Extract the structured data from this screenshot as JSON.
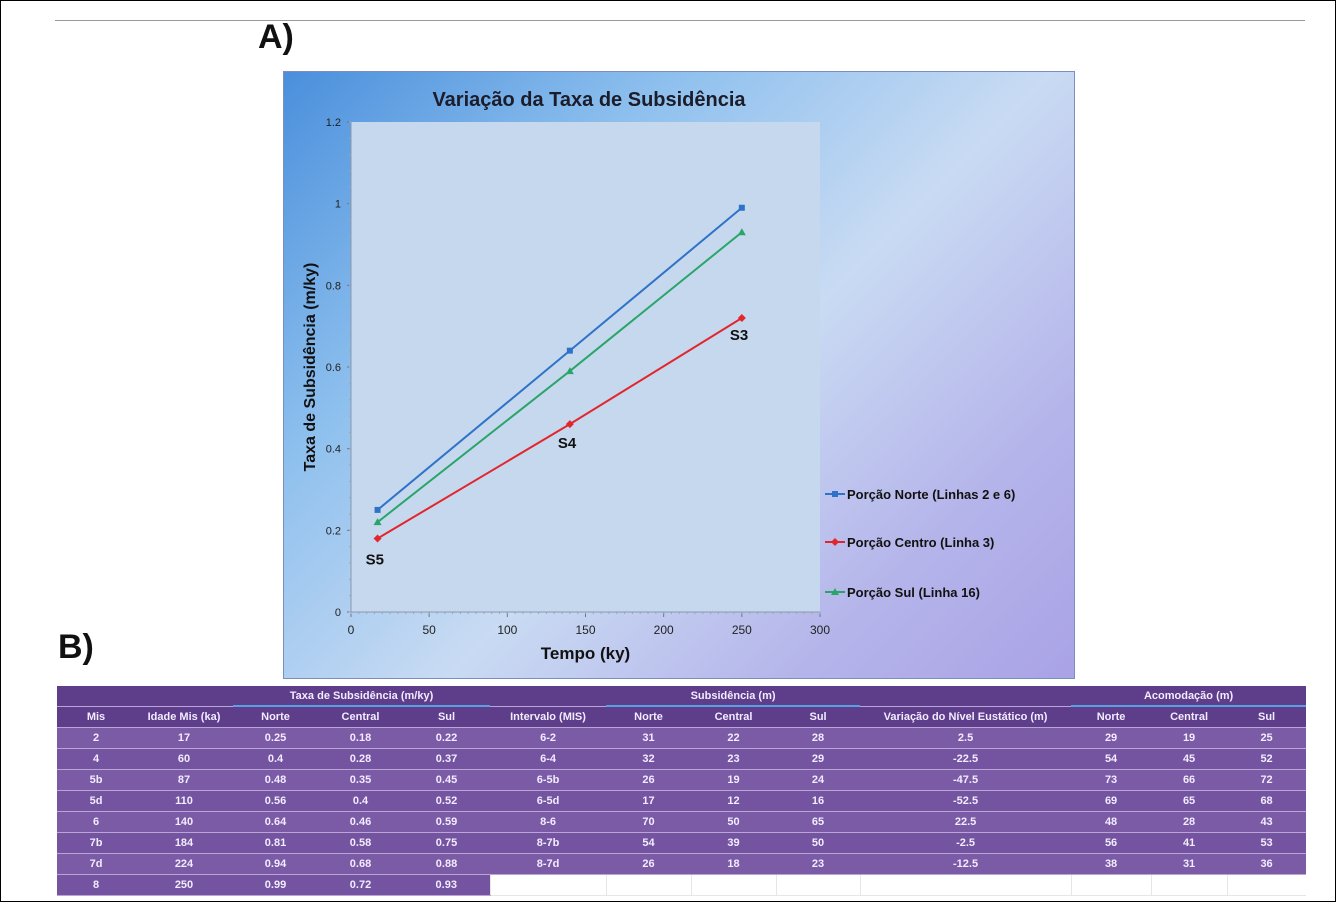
{
  "panel_a_label": "A)",
  "panel_b_label": "B)",
  "colors": {
    "norte": "#2f73c9",
    "centro": "#e3262d",
    "sul": "#2aa56a",
    "table_dark": "#5e3d8a",
    "table_row": "#7b5aa6"
  },
  "chart_data": {
    "type": "line",
    "title": "Variação da Taxa de Subsidência",
    "xlabel": "Tempo (ky)",
    "ylabel": "Taxa de Subsidência (m/ky)",
    "xlim": [
      0,
      300
    ],
    "ylim": [
      0,
      1.2
    ],
    "xticks": [
      0,
      50,
      100,
      150,
      200,
      250,
      300
    ],
    "yticks": [
      0,
      0.2,
      0.4,
      0.6,
      0.8,
      1,
      1.2
    ],
    "legend_position": "right",
    "series": [
      {
        "name": "Porção Norte (Linhas 2 e 6)",
        "color": "#2f73c9",
        "marker": "square",
        "x": [
          17,
          140,
          250
        ],
        "y": [
          0.25,
          0.64,
          0.99
        ]
      },
      {
        "name": "Porção Centro (Linha 3)",
        "color": "#e3262d",
        "marker": "diamond",
        "x": [
          17,
          140,
          250
        ],
        "y": [
          0.18,
          0.46,
          0.72
        ]
      },
      {
        "name": "Porção Sul (Linha 16)",
        "color": "#2aa56a",
        "marker": "triangle",
        "x": [
          17,
          140,
          250
        ],
        "y": [
          0.22,
          0.59,
          0.93
        ]
      }
    ],
    "annotations": [
      {
        "text": "S5",
        "x": 17,
        "y": 0.18
      },
      {
        "text": "S4",
        "x": 140,
        "y": 0.46
      },
      {
        "text": "S3",
        "x": 250,
        "y": 0.72
      }
    ]
  },
  "table": {
    "groups": {
      "taxa": "Taxa de Subsidência (m/ky)",
      "subsidencia": "Subsidência (m)",
      "acomodacao": "Acomodação (m)"
    },
    "headers": [
      "Mis",
      "Idade Mis (ka)",
      "Norte",
      "Central",
      "Sul",
      "Intervalo (MIS)",
      "Norte",
      "Central",
      "Sul",
      "Variação do Nível Eustático (m)",
      "Norte",
      "Central",
      "Sul"
    ],
    "rows": [
      [
        "2",
        "17",
        "0.25",
        "0.18",
        "0.22",
        "6-2",
        "31",
        "22",
        "28",
        "2.5",
        "29",
        "19",
        "25"
      ],
      [
        "4",
        "60",
        "0.4",
        "0.28",
        "0.37",
        "6-4",
        "32",
        "23",
        "29",
        "-22.5",
        "54",
        "45",
        "52"
      ],
      [
        "5b",
        "87",
        "0.48",
        "0.35",
        "0.45",
        "6-5b",
        "26",
        "19",
        "24",
        "-47.5",
        "73",
        "66",
        "72"
      ],
      [
        "5d",
        "110",
        "0.56",
        "0.4",
        "0.52",
        "6-5d",
        "17",
        "12",
        "16",
        "-52.5",
        "69",
        "65",
        "68"
      ],
      [
        "6",
        "140",
        "0.64",
        "0.46",
        "0.59",
        "8-6",
        "70",
        "50",
        "65",
        "22.5",
        "48",
        "28",
        "43"
      ],
      [
        "7b",
        "184",
        "0.81",
        "0.58",
        "0.75",
        "8-7b",
        "54",
        "39",
        "50",
        "-2.5",
        "56",
        "41",
        "53"
      ],
      [
        "7d",
        "224",
        "0.94",
        "0.68",
        "0.88",
        "8-7d",
        "26",
        "18",
        "23",
        "-12.5",
        "38",
        "31",
        "36"
      ],
      [
        "8",
        "250",
        "0.99",
        "0.72",
        "0.93",
        "",
        "",
        "",
        "",
        "",
        "",
        "",
        ""
      ]
    ]
  }
}
